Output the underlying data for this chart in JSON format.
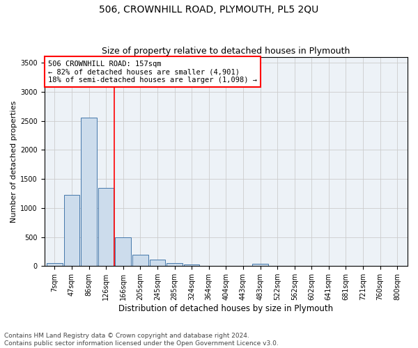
{
  "title1": "506, CROWNHILL ROAD, PLYMOUTH, PL5 2QU",
  "title2": "Size of property relative to detached houses in Plymouth",
  "xlabel": "Distribution of detached houses by size in Plymouth",
  "ylabel": "Number of detached properties",
  "bar_labels": [
    "7sqm",
    "47sqm",
    "86sqm",
    "126sqm",
    "166sqm",
    "205sqm",
    "245sqm",
    "285sqm",
    "324sqm",
    "364sqm",
    "404sqm",
    "443sqm",
    "483sqm",
    "522sqm",
    "562sqm",
    "602sqm",
    "641sqm",
    "681sqm",
    "721sqm",
    "760sqm",
    "800sqm"
  ],
  "bar_heights": [
    50,
    1230,
    2560,
    1350,
    500,
    195,
    105,
    50,
    30,
    0,
    0,
    0,
    35,
    0,
    0,
    0,
    0,
    0,
    0,
    0,
    0
  ],
  "bar_color": "#ccdcec",
  "bar_edge_color": "#4477aa",
  "red_line_index": 4,
  "annotation_line1": "506 CROWNHILL ROAD: 157sqm",
  "annotation_line2": "← 82% of detached houses are smaller (4,901)",
  "annotation_line3": "18% of semi-detached houses are larger (1,098) →",
  "annotation_box_color": "white",
  "annotation_box_edge_color": "red",
  "ylim": [
    0,
    3600
  ],
  "yticks": [
    0,
    500,
    1000,
    1500,
    2000,
    2500,
    3000,
    3500
  ],
  "grid_color": "#cccccc",
  "background_color": "#edf2f7",
  "footer_line1": "Contains HM Land Registry data © Crown copyright and database right 2024.",
  "footer_line2": "Contains public sector information licensed under the Open Government Licence v3.0.",
  "title1_fontsize": 10,
  "title2_fontsize": 9,
  "xlabel_fontsize": 8.5,
  "ylabel_fontsize": 8,
  "tick_fontsize": 7,
  "annotation_fontsize": 7.5,
  "footer_fontsize": 6.5
}
